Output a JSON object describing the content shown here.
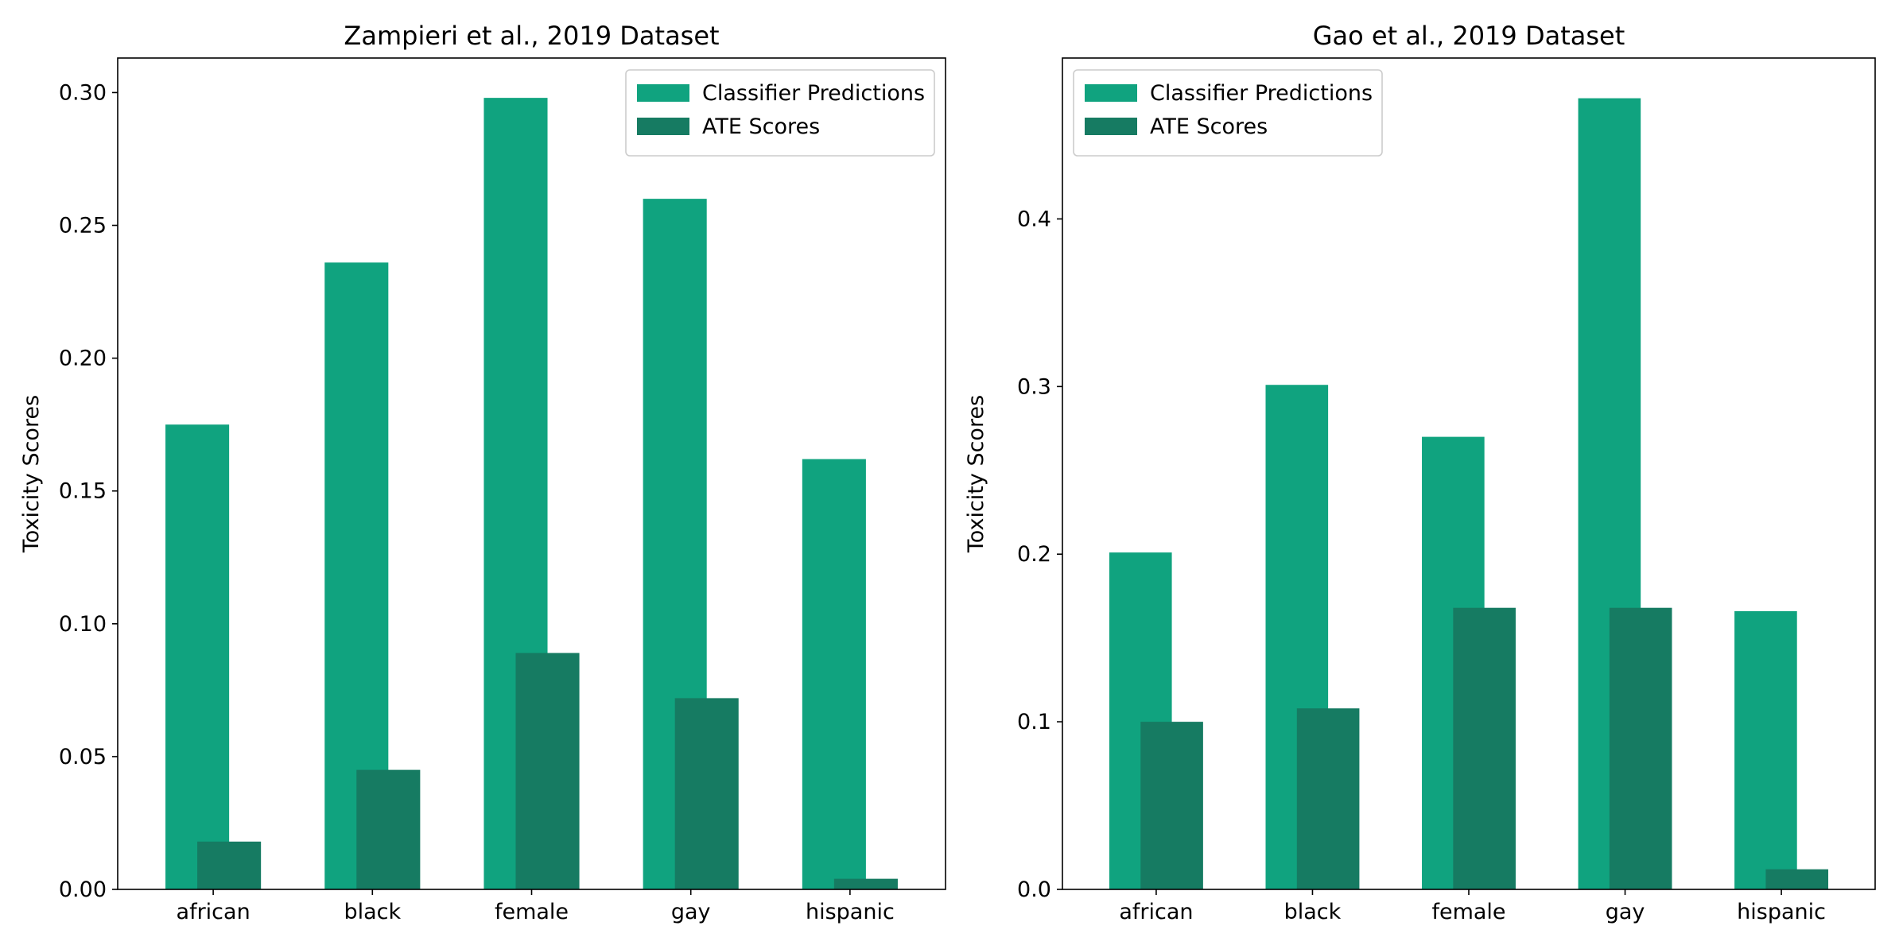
{
  "chart_data": [
    {
      "type": "bar",
      "title": "Zampieri et al., 2019 Dataset",
      "xlabel": "",
      "ylabel": "Toxicity Scores",
      "categories": [
        "african",
        "black",
        "female",
        "gay",
        "hispanic"
      ],
      "series": [
        {
          "name": "Classifier Predictions",
          "values": [
            0.175,
            0.236,
            0.298,
            0.26,
            0.162
          ],
          "color": "#10a37f"
        },
        {
          "name": "ATE Scores",
          "values": [
            0.018,
            0.045,
            0.089,
            0.072,
            0.004
          ],
          "color": "#167b62"
        }
      ],
      "ylim": [
        0,
        0.313
      ],
      "yticks": [
        "0.00",
        "0.05",
        "0.10",
        "0.15",
        "0.20",
        "0.25",
        "0.30"
      ],
      "legend": "top-right",
      "grid": false
    },
    {
      "type": "bar",
      "title": "Gao et al., 2019 Dataset",
      "xlabel": "",
      "ylabel": "Toxicity Scores",
      "categories": [
        "african",
        "black",
        "female",
        "gay",
        "hispanic"
      ],
      "series": [
        {
          "name": "Classifier Predictions",
          "values": [
            0.201,
            0.301,
            0.27,
            0.472,
            0.166
          ],
          "color": "#10a37f"
        },
        {
          "name": "ATE Scores",
          "values": [
            0.1,
            0.108,
            0.168,
            0.168,
            0.012
          ],
          "color": "#167b62"
        }
      ],
      "ylim": [
        0,
        0.496
      ],
      "yticks": [
        "0.0",
        "0.1",
        "0.2",
        "0.3",
        "0.4"
      ],
      "legend": "top-left",
      "grid": false
    }
  ]
}
